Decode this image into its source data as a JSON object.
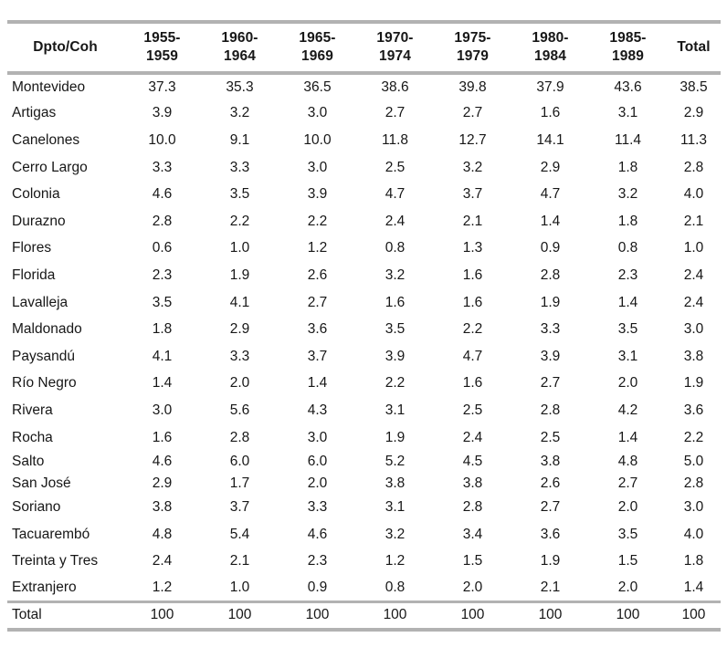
{
  "table": {
    "header": {
      "dpto_label": "Dpto/Coh",
      "period_columns": [
        {
          "line1": "1955-",
          "line2": "1959"
        },
        {
          "line1": "1960-",
          "line2": "1964"
        },
        {
          "line1": "1965-",
          "line2": "1969"
        },
        {
          "line1": "1970-",
          "line2": "1974"
        },
        {
          "line1": "1975-",
          "line2": "1979"
        },
        {
          "line1": "1980-",
          "line2": "1984"
        },
        {
          "line1": "1985-",
          "line2": "1989"
        }
      ],
      "total_label": "Total"
    },
    "rows": [
      {
        "label": "Montevideo",
        "values": [
          "37.3",
          "35.3",
          "36.5",
          "38.6",
          "39.8",
          "37.9",
          "43.6",
          "38.5"
        ]
      },
      {
        "label": "Artigas",
        "values": [
          "3.9",
          "3.2",
          "3.0",
          "2.7",
          "2.7",
          "1.6",
          "3.1",
          "2.9"
        ]
      },
      {
        "label": "Canelones",
        "values": [
          "10.0",
          "9.1",
          "10.0",
          "11.8",
          "12.7",
          "14.1",
          "11.4",
          "11.3"
        ]
      },
      {
        "label": "Cerro Largo",
        "values": [
          "3.3",
          "3.3",
          "3.0",
          "2.5",
          "3.2",
          "2.9",
          "1.8",
          "2.8"
        ]
      },
      {
        "label": "Colonia",
        "values": [
          "4.6",
          "3.5",
          "3.9",
          "4.7",
          "3.7",
          "4.7",
          "3.2",
          "4.0"
        ]
      },
      {
        "label": "Durazno",
        "values": [
          "2.8",
          "2.2",
          "2.2",
          "2.4",
          "2.1",
          "1.4",
          "1.8",
          "2.1"
        ]
      },
      {
        "label": "Flores",
        "values": [
          "0.6",
          "1.0",
          "1.2",
          "0.8",
          "1.3",
          "0.9",
          "0.8",
          "1.0"
        ]
      },
      {
        "label": "Florida",
        "values": [
          "2.3",
          "1.9",
          "2.6",
          "3.2",
          "1.6",
          "2.8",
          "2.3",
          "2.4"
        ]
      },
      {
        "label": "Lavalleja",
        "values": [
          "3.5",
          "4.1",
          "2.7",
          "1.6",
          "1.6",
          "1.9",
          "1.4",
          "2.4"
        ]
      },
      {
        "label": "Maldonado",
        "values": [
          "1.8",
          "2.9",
          "3.6",
          "3.5",
          "2.2",
          "3.3",
          "3.5",
          "3.0"
        ]
      },
      {
        "label": "Paysandú",
        "values": [
          "4.1",
          "3.3",
          "3.7",
          "3.9",
          "4.7",
          "3.9",
          "3.1",
          "3.8"
        ]
      },
      {
        "label": "Río Negro",
        "values": [
          "1.4",
          "2.0",
          "1.4",
          "2.2",
          "1.6",
          "2.7",
          "2.0",
          "1.9"
        ]
      },
      {
        "label": "Rivera",
        "values": [
          "3.0",
          "5.6",
          "4.3",
          "3.1",
          "2.5",
          "2.8",
          "4.2",
          "3.6"
        ]
      },
      {
        "label": "Rocha",
        "values": [
          "1.6",
          "2.8",
          "3.0",
          "1.9",
          "2.4",
          "2.5",
          "1.4",
          "2.2"
        ]
      },
      {
        "label": "Salto",
        "values": [
          "4.6",
          "6.0",
          "6.0",
          "5.2",
          "4.5",
          "3.8",
          "4.8",
          "5.0"
        ]
      },
      {
        "label": "San José",
        "values": [
          "2.9",
          "1.7",
          "2.0",
          "3.8",
          "3.8",
          "2.6",
          "2.7",
          "2.8"
        ]
      },
      {
        "label": "Soriano",
        "values": [
          "3.8",
          "3.7",
          "3.3",
          "3.1",
          "2.8",
          "2.7",
          "2.0",
          "3.0"
        ]
      },
      {
        "label": "Tacuarembó",
        "values": [
          "4.8",
          "5.4",
          "4.6",
          "3.2",
          "3.4",
          "3.6",
          "3.5",
          "4.0"
        ]
      },
      {
        "label": "Treinta y Tres",
        "values": [
          "2.4",
          "2.1",
          "2.3",
          "1.2",
          "1.5",
          "1.9",
          "1.5",
          "1.8"
        ]
      },
      {
        "label": "Extranjero",
        "values": [
          "1.2",
          "1.0",
          "0.9",
          "0.8",
          "2.0",
          "2.1",
          "2.0",
          "1.4"
        ]
      }
    ],
    "total_row": {
      "label": "Total",
      "values": [
        "100",
        "100",
        "100",
        "100",
        "100",
        "100",
        "100",
        "100"
      ]
    },
    "colors": {
      "rule_gray": "#b2b2b2",
      "text": "#171717"
    }
  }
}
